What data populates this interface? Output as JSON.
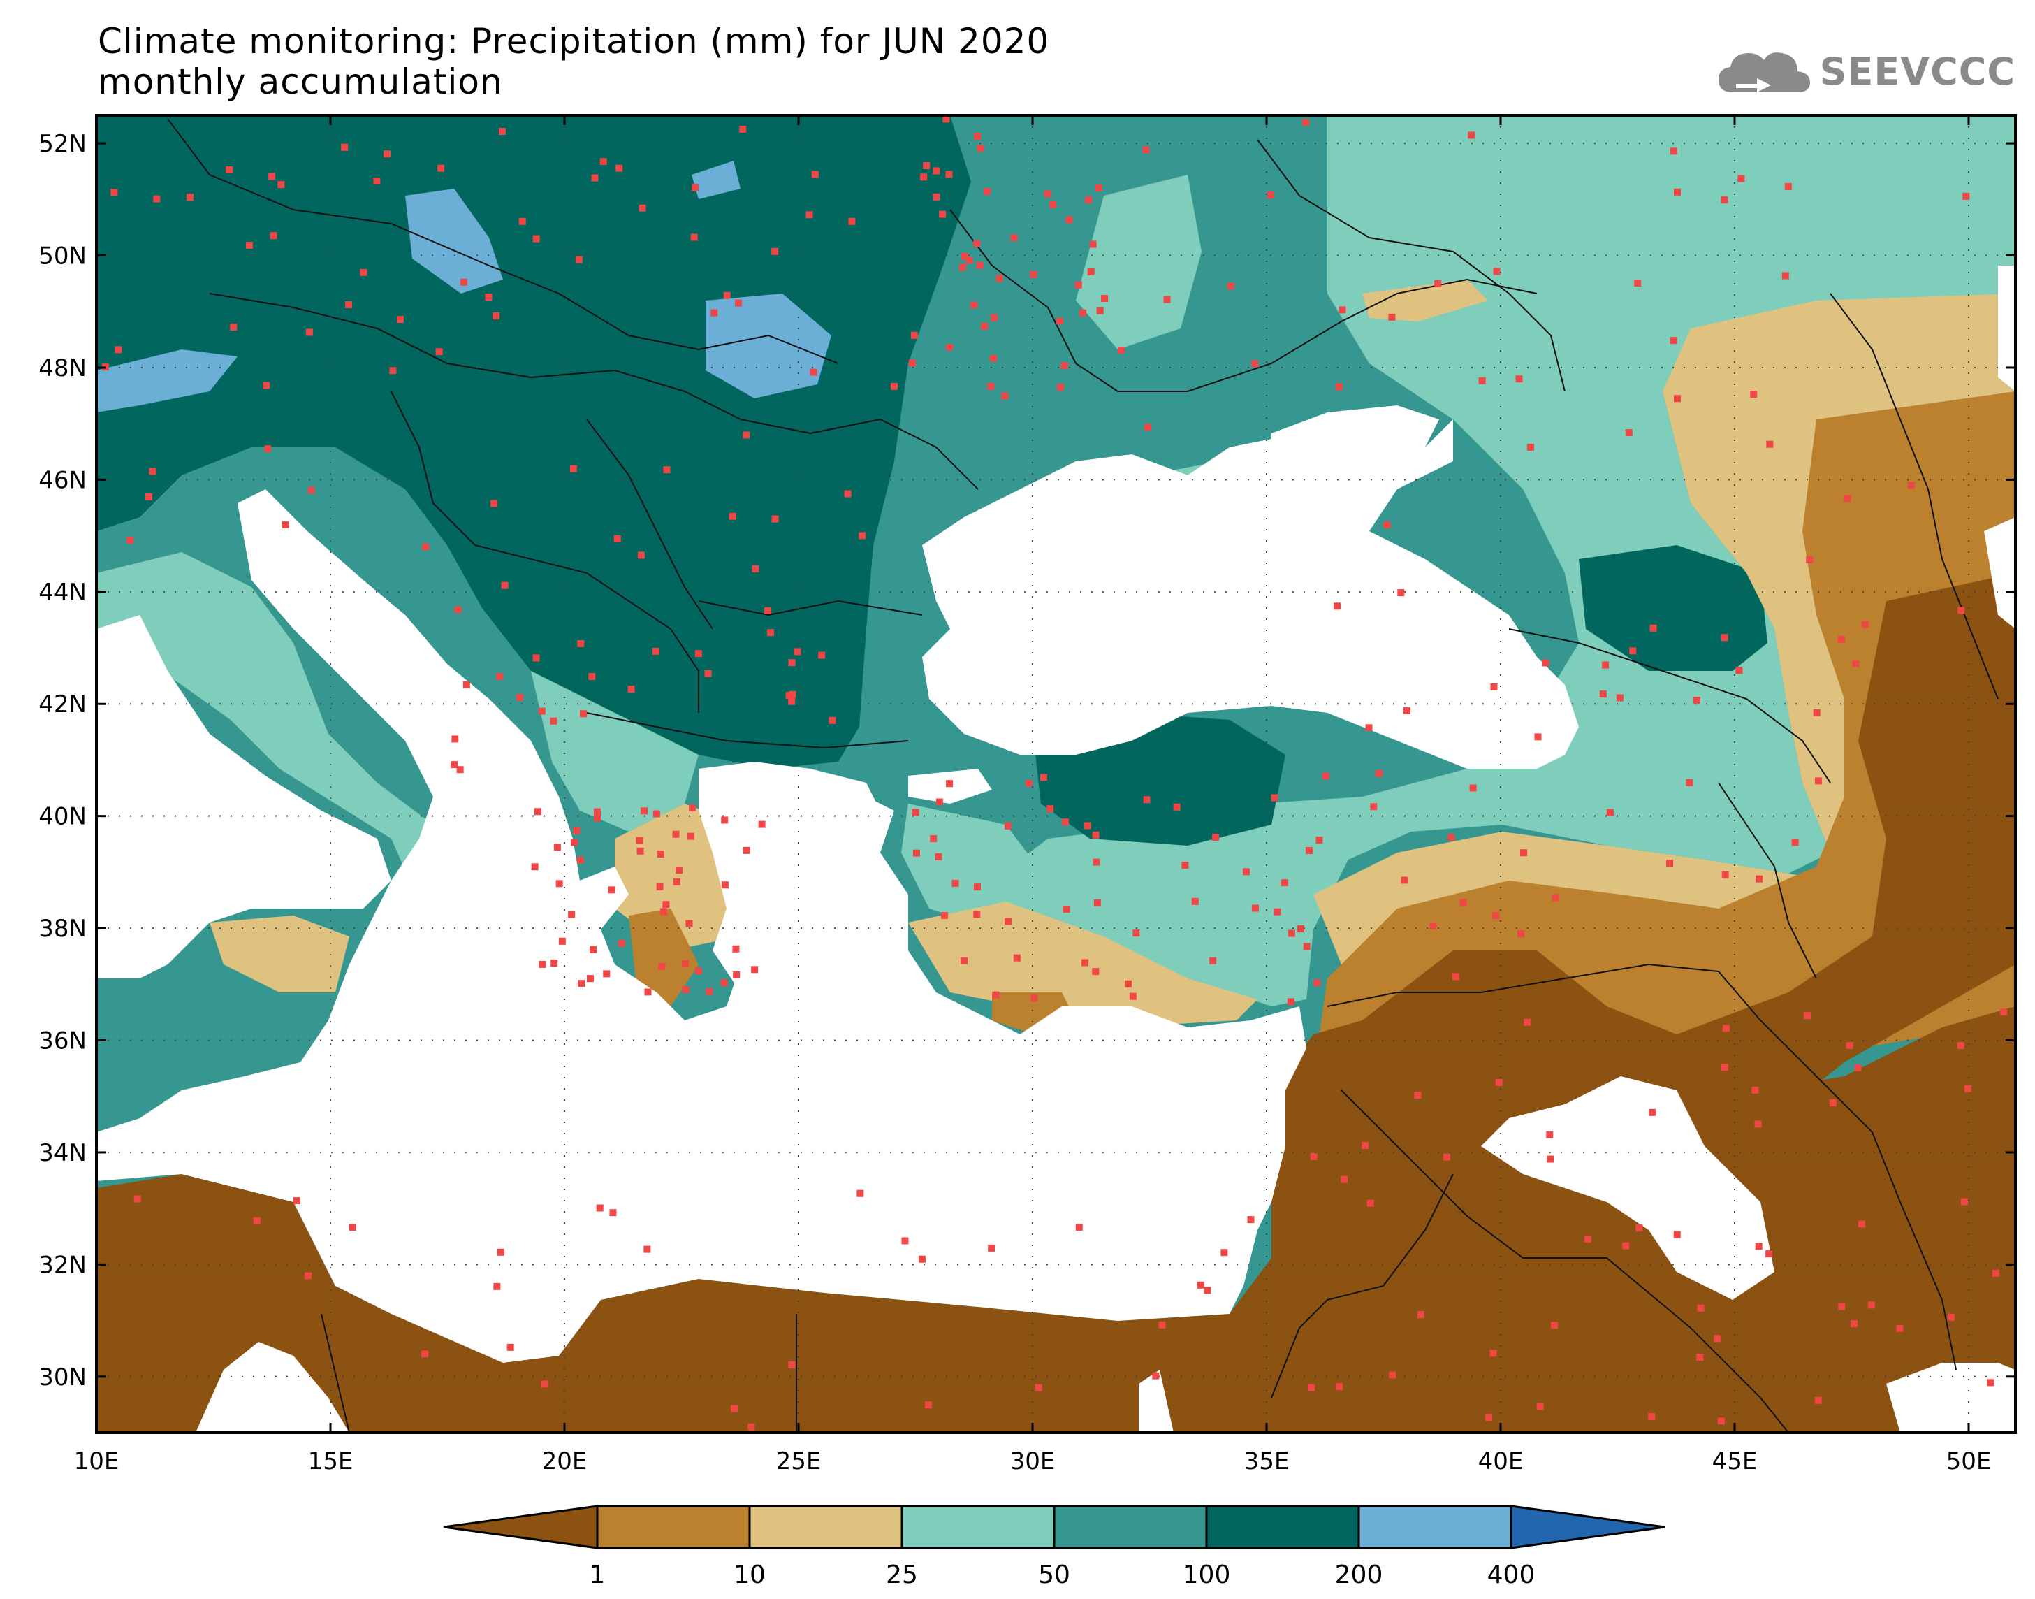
{
  "title": {
    "line1": "Climate monitoring: Precipitation (mm) for JUN 2020",
    "line2": "monthly accumulation"
  },
  "logo": {
    "text": "SEEVCCC",
    "icon": "cloud-icon"
  },
  "map": {
    "lon_ticks": [
      "10E",
      "15E",
      "20E",
      "25E",
      "30E",
      "35E",
      "40E",
      "45E",
      "50E"
    ],
    "lat_ticks": [
      "52N",
      "50N",
      "48N",
      "46N",
      "44N",
      "42N",
      "40N",
      "38N",
      "36N",
      "34N",
      "32N",
      "30N"
    ],
    "lon_range": [
      10,
      51
    ],
    "lat_range": [
      29,
      52.5
    ],
    "grid": "dotted"
  },
  "colorbar": {
    "labels": [
      "1",
      "10",
      "25",
      "50",
      "100",
      "200",
      "400"
    ],
    "colors": [
      "#8B5212",
      "#BB812F",
      "#E0C280",
      "#7FCDBB",
      "#35978F",
      "#01665E",
      "#6BAED6",
      "#2166AC"
    ],
    "extend": "both"
  },
  "colors": {
    "ocean": "#ffffff",
    "station": "#F04646",
    "border": "#111111"
  }
}
